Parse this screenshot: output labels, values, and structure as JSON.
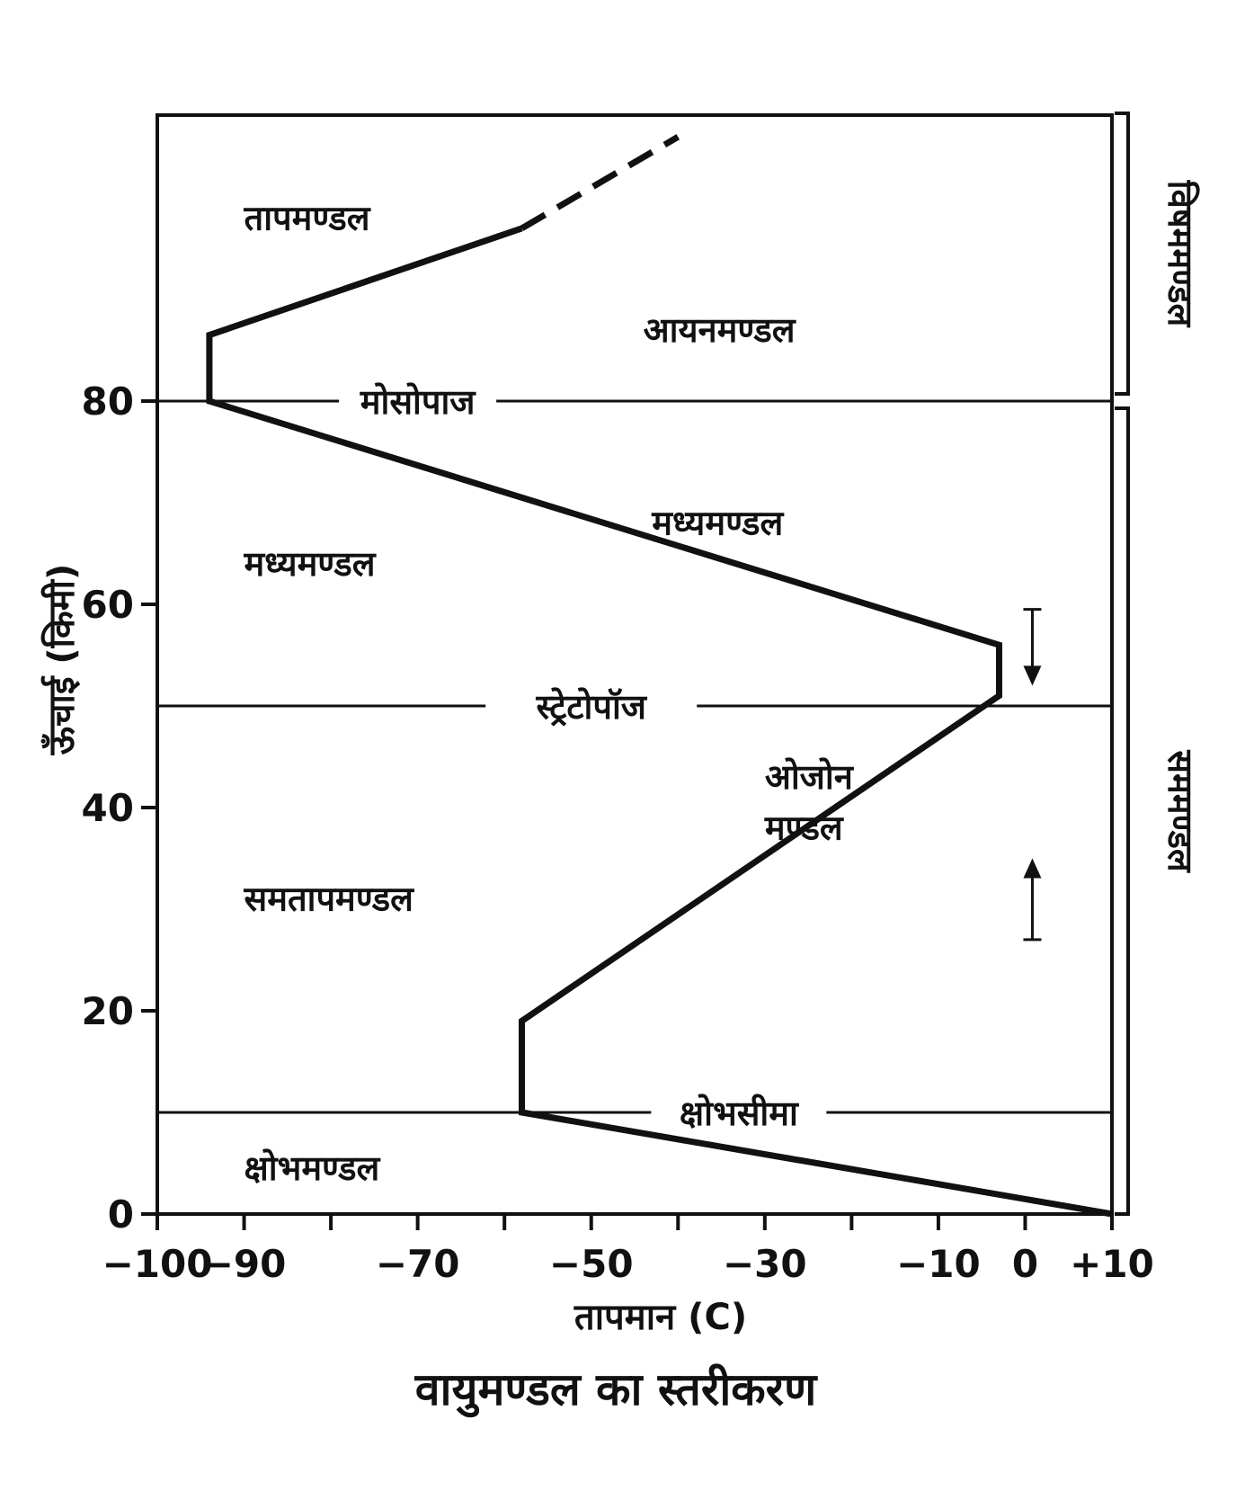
{
  "chart_data": {
    "type": "line",
    "title": "वायुमण्डल का स्तरीकरण",
    "xlabel": "तापमान (C)",
    "ylabel": "ऊँचाई (किमी)",
    "xlim": [
      -100,
      10
    ],
    "ylim": [
      0,
      100
    ],
    "x_ticks": [
      -100,
      -90,
      -80,
      -70,
      -60,
      -50,
      -40,
      -30,
      -20,
      -10,
      0,
      10
    ],
    "x_tick_labels": [
      "−100",
      "−90",
      "−70",
      "−50",
      "−30",
      "−10",
      "0",
      "+10"
    ],
    "x_tick_label_values": [
      -100,
      -90,
      -70,
      -50,
      -30,
      -10,
      0,
      10
    ],
    "y_ticks": [
      0,
      20,
      40,
      60,
      80
    ],
    "y_tick_labels": [
      "0",
      "20",
      "40",
      "60",
      "80"
    ],
    "grid": false,
    "series": [
      {
        "style": "solid",
        "x": [
          10,
          -58,
          -58,
          -3,
          -3,
          -94,
          -94,
          -58
        ],
        "y": [
          0,
          10,
          19,
          51,
          56,
          80,
          86.5,
          97
        ]
      },
      {
        "style": "dashed",
        "x": [
          -58,
          -40
        ],
        "y": [
          97,
          106
        ]
      }
    ],
    "boundaries": [
      {
        "name": "मोसोपाज",
        "y": 80
      },
      {
        "name": "स्ट्रेटोपॉज",
        "y": 50
      },
      {
        "name": "क्षोभसीमा",
        "y": 10
      }
    ],
    "regions": [
      {
        "label": "तापमण्डल",
        "x": -90,
        "y": 98
      },
      {
        "label": "आयनमण्डल",
        "x": -44,
        "y": 87
      },
      {
        "label": "मध्यमण्डल",
        "x": -90,
        "y": 64
      },
      {
        "label": "मध्यमण्डल",
        "x": -43,
        "y": 68
      },
      {
        "label": "समतापमण्डल",
        "x": -90,
        "y": 31
      },
      {
        "label": "ओजोन",
        "x": -30,
        "y": 43
      },
      {
        "label": "मण्डल",
        "x": -30,
        "y": 38
      },
      {
        "label": "क्षोभमण्डल",
        "x": -90,
        "y": 4.5
      }
    ],
    "brackets": [
      {
        "label": "विषममण्डल",
        "from": 80,
        "to": 106
      },
      {
        "label": "सममण्डल",
        "from": 0,
        "to": 80
      }
    ],
    "ozone_arrows": {
      "x": 0,
      "down_from": 59.5,
      "down_to": 52,
      "up_from": 27,
      "up_to": 35
    }
  }
}
